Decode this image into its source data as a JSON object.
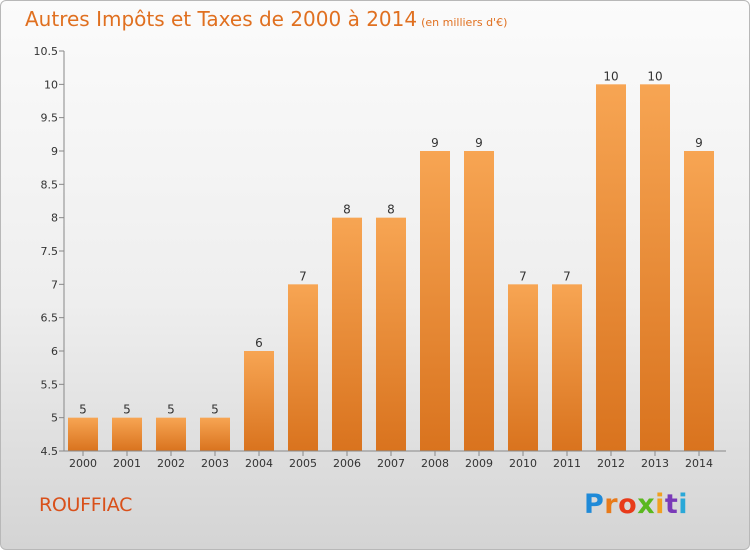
{
  "header": {
    "title": "Autres Impôts et Taxes de 2000 à 2014",
    "subtitle": "(en milliers d'€)"
  },
  "footer": {
    "commune": "ROUFFIAC",
    "logo_text": "Proxiti"
  },
  "colors": {
    "title": "#e07020",
    "bar_light": "#f7a553",
    "bar_dark": "#d9731e",
    "commune": "#d9501a"
  },
  "chart_data": {
    "type": "bar",
    "title": "Autres Impôts et Taxes de 2000 à 2014",
    "subtitle": "(en milliers d'€)",
    "categories": [
      "2000",
      "2001",
      "2002",
      "2003",
      "2004",
      "2005",
      "2006",
      "2007",
      "2008",
      "2009",
      "2010",
      "2011",
      "2012",
      "2013",
      "2014"
    ],
    "values": [
      5,
      5,
      5,
      5,
      6,
      7,
      8,
      8,
      9,
      9,
      7,
      7,
      10,
      10,
      9
    ],
    "ylim": [
      4.5,
      10.5
    ],
    "yticks": [
      "4.5",
      "5",
      "5.5",
      "6",
      "6.5",
      "7",
      "7.5",
      "8",
      "8.5",
      "9",
      "9.5",
      "10",
      "10.5"
    ],
    "grid": false,
    "legend": "none"
  }
}
